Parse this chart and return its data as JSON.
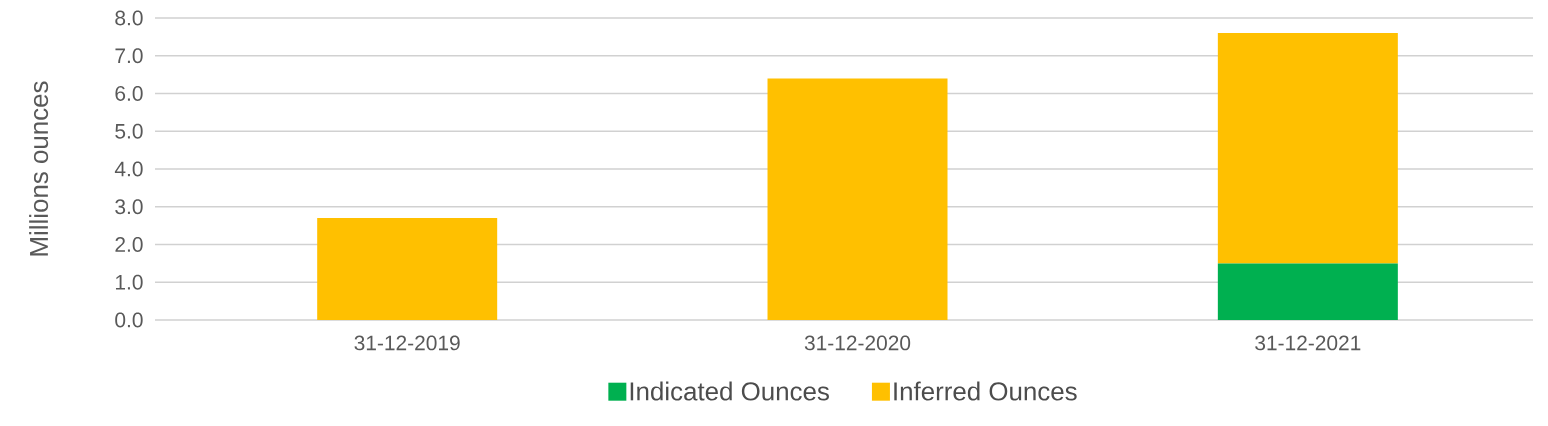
{
  "chart_data": {
    "type": "bar",
    "stacked": true,
    "ylabel": "Millions ounces",
    "categories": [
      "31-12-2019",
      "31-12-2020",
      "31-12-2021"
    ],
    "series": [
      {
        "name": "Indicated Ounces",
        "color": "#00b050",
        "values": [
          0,
          0,
          1.5
        ]
      },
      {
        "name": "Inferred Ounces",
        "color": "#ffc000",
        "values": [
          2.7,
          6.4,
          6.1
        ]
      }
    ],
    "ylim": [
      0,
      8
    ],
    "yticks": [
      {
        "value": 0,
        "label": "0.0"
      },
      {
        "value": 1,
        "label": "1.0"
      },
      {
        "value": 2,
        "label": "2.0"
      },
      {
        "value": 3,
        "label": "3.0"
      },
      {
        "value": 4,
        "label": "4.0"
      },
      {
        "value": 5,
        "label": "5.0"
      },
      {
        "value": 6,
        "label": "6.0"
      },
      {
        "value": 7,
        "label": "7.0"
      },
      {
        "value": 8,
        "label": "8.0"
      }
    ],
    "grid": "y",
    "legend": "bottom"
  }
}
